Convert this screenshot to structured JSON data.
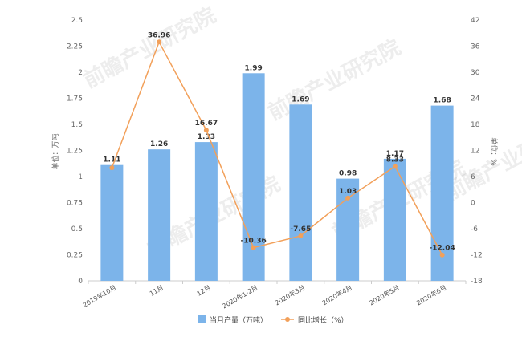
{
  "chart_data": {
    "type": "bar",
    "categories": [
      "2019年10月",
      "11月",
      "12月",
      "2020年1-2月",
      "2020年3月",
      "2020年4月",
      "2020年5月",
      "2020年6月"
    ],
    "series": [
      {
        "name": "当月产量（万吨）",
        "type": "bar",
        "axis": "left",
        "values": [
          1.11,
          1.26,
          1.33,
          1.99,
          1.69,
          0.98,
          1.17,
          1.68
        ],
        "labels": [
          "1.11",
          "1.26",
          "1.33",
          "1.99",
          "1.69",
          "0.98",
          "1.17",
          "1.68"
        ],
        "color": "#7cb4ea"
      },
      {
        "name": "同比增长（%）",
        "type": "line",
        "axis": "right",
        "values": [
          8,
          36.96,
          16.67,
          -10.36,
          -7.65,
          1.03,
          8.33,
          -12.04
        ],
        "labels": [
          "",
          "36.96",
          "16.67",
          "-10.36",
          "-7.65",
          "1.03",
          "8.33",
          "-12.04"
        ],
        "color": "#f2a05a"
      }
    ],
    "y_left": {
      "label": "单位：万吨",
      "ylim": [
        0,
        2.5
      ],
      "ticks": [
        "0",
        "0.25",
        "0.5",
        "0.75",
        "1",
        "1.25",
        "1.5",
        "1.75",
        "2",
        "2.25",
        "2.5"
      ],
      "tick_values": [
        0,
        0.25,
        0.5,
        0.75,
        1,
        1.25,
        1.5,
        1.75,
        2,
        2.25,
        2.5
      ]
    },
    "y_right": {
      "label": "单位：%",
      "ylim": [
        -18,
        42
      ],
      "ticks": [
        "-18",
        "-12",
        "-6",
        "0",
        "6",
        "12",
        "18",
        "24",
        "30",
        "36",
        "42"
      ],
      "tick_values": [
        -18,
        -12,
        -6,
        0,
        6,
        12,
        18,
        24,
        30,
        36,
        42
      ]
    },
    "grid": false,
    "legend_position": "bottom"
  },
  "watermark": "前瞻产业研究院"
}
